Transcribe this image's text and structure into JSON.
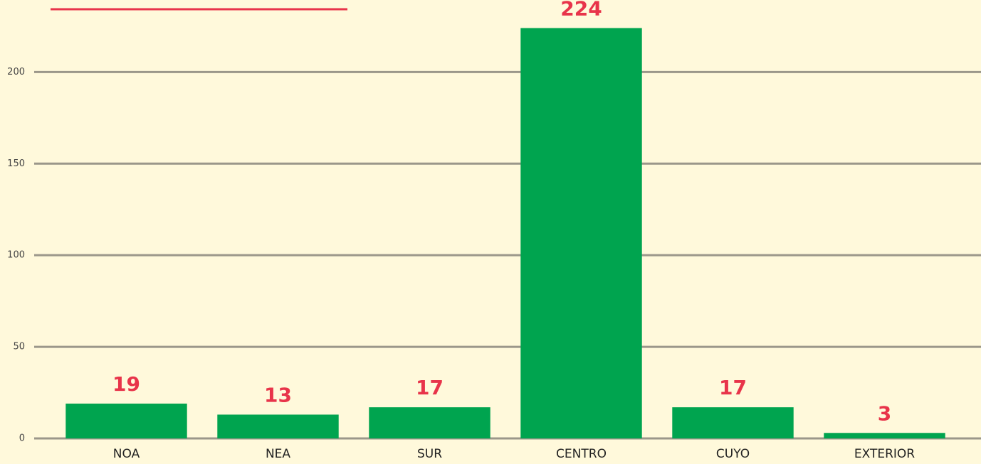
{
  "chart_data": {
    "type": "bar",
    "categories": [
      "NOA",
      "NEA",
      "SUR",
      "CENTRO",
      "CUYO",
      "EXTERIOR"
    ],
    "values": [
      19,
      13,
      17,
      224,
      17,
      3
    ],
    "color": "#00a44f",
    "label_color": "#e8344a",
    "ylim": [
      0,
      230
    ],
    "yticks": [
      0,
      50,
      100,
      150,
      200
    ],
    "grid": true
  }
}
